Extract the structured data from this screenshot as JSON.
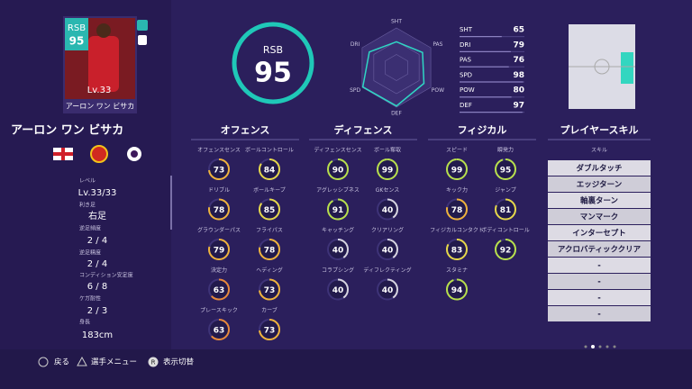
{
  "card": {
    "position": "RSB",
    "rating": 95,
    "level": "Lv.33",
    "name": "アーロン ワン ビサカ"
  },
  "player_name": "アーロン ワン ビサカ",
  "info": [
    {
      "label": "レベル",
      "value": "Lv.33/33"
    },
    {
      "label": "利き足",
      "value": "右足"
    },
    {
      "label": "逆足頻度",
      "value": "2 / 4"
    },
    {
      "label": "逆足精度",
      "value": "2 / 4"
    },
    {
      "label": "コンディション安定度",
      "value": "6 / 8"
    },
    {
      "label": "ケガ耐性",
      "value": "2 / 3"
    },
    {
      "label": "身長",
      "value": "183cm"
    }
  ],
  "overall": {
    "position": "RSB",
    "rating": 95
  },
  "radar_labels": [
    "SHT",
    "PAS",
    "POW",
    "DEF",
    "SPD",
    "DRI"
  ],
  "stats": [
    {
      "label": "SHT",
      "value": 65
    },
    {
      "label": "DRI",
      "value": 79
    },
    {
      "label": "PAS",
      "value": 76
    },
    {
      "label": "SPD",
      "value": 98
    },
    {
      "label": "POW",
      "value": 80
    },
    {
      "label": "DEF",
      "value": 97
    }
  ],
  "sections": [
    {
      "title": "オフェンス",
      "abilities": [
        {
          "label": "オフェンスセンス",
          "value": 73
        },
        {
          "label": "ボールコントロール",
          "value": 84
        },
        {
          "label": "ドリブル",
          "value": 78
        },
        {
          "label": "ボールキープ",
          "value": 85
        },
        {
          "label": "グラウンダーパス",
          "value": 79
        },
        {
          "label": "フライパス",
          "value": 78
        },
        {
          "label": "決定力",
          "value": 63
        },
        {
          "label": "ヘディング",
          "value": 73
        },
        {
          "label": "プレースキック",
          "value": 63
        },
        {
          "label": "カーブ",
          "value": 73
        }
      ]
    },
    {
      "title": "ディフェンス",
      "abilities": [
        {
          "label": "ディフェンスセンス",
          "value": 90
        },
        {
          "label": "ボール奪取",
          "value": 99
        },
        {
          "label": "アグレッシブネス",
          "value": 91
        },
        {
          "label": "GKセンス",
          "value": 40
        },
        {
          "label": "キャッチング",
          "value": 40
        },
        {
          "label": "クリアリング",
          "value": 40
        },
        {
          "label": "コラプシング",
          "value": 40
        },
        {
          "label": "ディフレクティング",
          "value": 40
        }
      ]
    },
    {
      "title": "フィジカル",
      "abilities": [
        {
          "label": "スピード",
          "value": 99
        },
        {
          "label": "瞬発力",
          "value": 95
        },
        {
          "label": "キック力",
          "value": 78
        },
        {
          "label": "ジャンプ",
          "value": 81
        },
        {
          "label": "フィジカルコンタクト",
          "value": 83
        },
        {
          "label": "ボディコントロール",
          "value": 92
        },
        {
          "label": "スタミナ",
          "value": 94
        }
      ]
    }
  ],
  "skills": {
    "title": "プレイヤースキル",
    "header": "スキル",
    "items": [
      "ダブルタッチ",
      "エッジターン",
      "軸裏ターン",
      "マンマーク",
      "インターセプト",
      "アクロバティッククリア",
      "-",
      "-",
      "-",
      "-"
    ]
  },
  "footer": [
    {
      "label": "戻る"
    },
    {
      "label": "選手メニュー"
    },
    {
      "button": "R",
      "label": "表示切替"
    }
  ]
}
